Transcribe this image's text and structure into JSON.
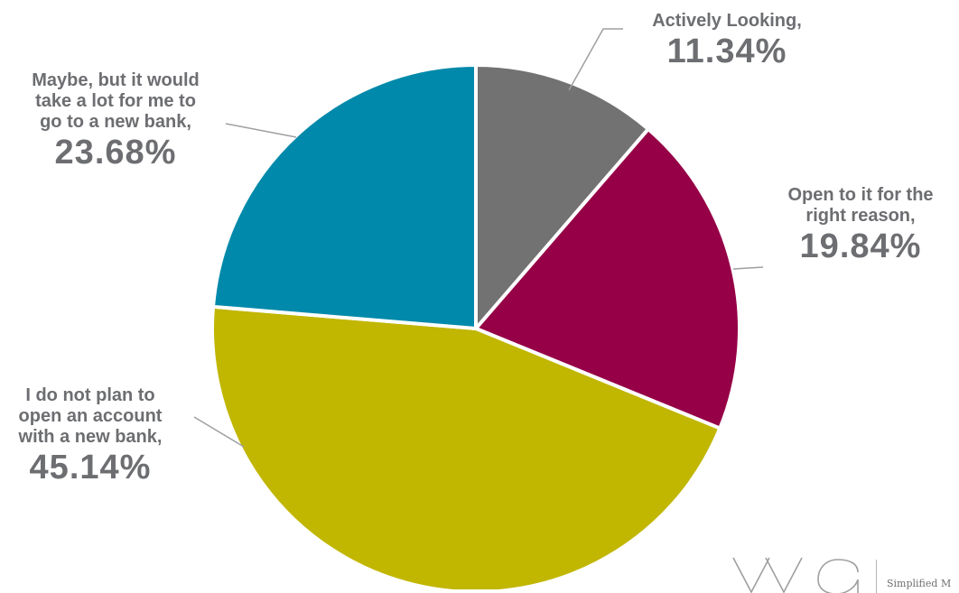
{
  "chart_data": {
    "type": "pie",
    "slices": [
      {
        "label": "Actively Looking,",
        "value": 11.34,
        "value_label": "11.34%",
        "color": "#727272"
      },
      {
        "label": "Open to it for the\nright reason,",
        "value": 19.84,
        "value_label": "19.84%",
        "color": "#960047"
      },
      {
        "label": "I do not plan to\nopen an account\nwith a new bank,",
        "value": 45.14,
        "value_label": "45.14%",
        "color": "#c1b600"
      },
      {
        "label": "Maybe, but it would\ntake a lot for me to\ngo to a new bank,",
        "value": 23.68,
        "value_label": "23.68%",
        "color": "#0089aa"
      }
    ],
    "start_angle": "12 o'clock",
    "direction": "clockwise",
    "label_color": "#6d6e71",
    "leader_line_color": "#9d9fa2"
  },
  "logo": {
    "mark_text": "VVA",
    "tagline": "Simplified M"
  }
}
